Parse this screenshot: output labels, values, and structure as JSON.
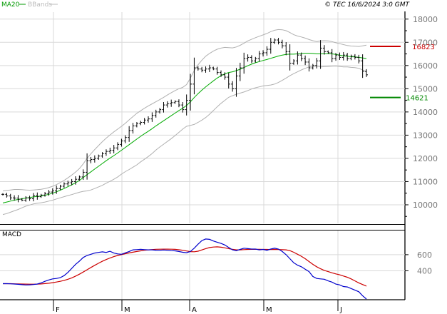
{
  "header": {
    "legend": [
      {
        "label": "MA20",
        "color": "#009900"
      },
      {
        "label": "BBands",
        "color": "#bbbbbb"
      }
    ],
    "source": "© TEC 16/6/2024 3:0 GMT"
  },
  "colors": {
    "price_bar": "#000000",
    "ma20": "#00aa00",
    "bbands": "#b0b0b0",
    "grid": "#d9d9d9",
    "resistance": "#cc0000",
    "support": "#008800",
    "macd": "#0000cc",
    "signal": "#cc0000",
    "axis_text": "#777777"
  },
  "chart_data": [
    {
      "type": "line",
      "subtype": "ohlc-bars",
      "title": "",
      "xlabel": "",
      "ylabel": "",
      "ylim": [
        9200,
        18300
      ],
      "y_ticks": [
        10000,
        11000,
        12000,
        13000,
        14000,
        15000,
        16000,
        17000,
        18000
      ],
      "y_tick_labels": [
        "10000",
        "11000",
        "12000",
        "13000",
        "14000",
        "15000",
        "16000",
        "17000",
        "18000"
      ],
      "x_month_labels": [
        "F",
        "M",
        "A",
        "M",
        "J"
      ],
      "grid": true,
      "legend_placement": "top-left",
      "closes": [
        10450,
        10380,
        10300,
        10290,
        10240,
        10200,
        10300,
        10260,
        10400,
        10350,
        10420,
        10480,
        10550,
        10600,
        10700,
        10800,
        10900,
        10950,
        11000,
        11100,
        11200,
        11400,
        11900,
        11950,
        12000,
        12100,
        12200,
        12300,
        12350,
        12450,
        12600,
        12750,
        12900,
        13200,
        13400,
        13500,
        13550,
        13650,
        13700,
        13850,
        14000,
        14100,
        14300,
        14350,
        14400,
        14450,
        14300,
        14100,
        14500,
        15200,
        15900,
        15850,
        15800,
        15850,
        15900,
        15850,
        15700,
        15600,
        15500,
        15200,
        15000,
        15550,
        15900,
        16300,
        16350,
        16200,
        16300,
        16500,
        16550,
        16700,
        17000,
        17100,
        17000,
        16850,
        16600,
        16100,
        16200,
        16450,
        16300,
        16150,
        15900,
        16000,
        16200,
        16750,
        16600,
        16550,
        16300,
        16450,
        16350,
        16450,
        16300,
        16400,
        16350,
        16200,
        15750,
        15600
      ],
      "series": [
        {
          "name": "MA20",
          "values": [
            10080,
            10120,
            10160,
            10200,
            10230,
            10260,
            10290,
            10310,
            10340,
            10360,
            10380,
            10410,
            10450,
            10500,
            10560,
            10630,
            10700,
            10780,
            10860,
            10950,
            11050,
            11170,
            11300,
            11420,
            11540,
            11660,
            11780,
            11900,
            12010,
            12120,
            12230,
            12350,
            12470,
            12590,
            12710,
            12830,
            12950,
            13060,
            13170,
            13280,
            13400,
            13510,
            13620,
            13730,
            13840,
            13950,
            14060,
            14160,
            14280,
            14440,
            14620,
            14790,
            14940,
            15080,
            15210,
            15340,
            15460,
            15560,
            15640,
            15700,
            15730,
            15780,
            15840,
            15910,
            15990,
            16060,
            16120,
            16170,
            16220,
            16260,
            16310,
            16360,
            16410,
            16450,
            16480,
            16490,
            16490,
            16500,
            16520,
            16530,
            16530,
            16520,
            16500,
            16500,
            16510,
            16510,
            16500,
            16480,
            16450,
            16420,
            16400,
            16380,
            16370,
            16350,
            16330,
            16300
          ]
        },
        {
          "name": "BBands upper",
          "values": [
            10600,
            10620,
            10640,
            10660,
            10660,
            10650,
            10640,
            10630,
            10640,
            10650,
            10670,
            10700,
            10740,
            10800,
            10870,
            10960,
            11050,
            11160,
            11280,
            11410,
            11560,
            11760,
            12000,
            12200,
            12380,
            12550,
            12720,
            12870,
            13010,
            13140,
            13260,
            13380,
            13510,
            13660,
            13800,
            13940,
            14050,
            14160,
            14260,
            14350,
            14440,
            14530,
            14630,
            14730,
            14830,
            14920,
            15000,
            15060,
            15180,
            15460,
            15780,
            16030,
            16230,
            16400,
            16520,
            16620,
            16700,
            16750,
            16780,
            16770,
            16760,
            16800,
            16870,
            16960,
            17060,
            17130,
            17200,
            17260,
            17320,
            17380,
            17460,
            17520,
            17550,
            17540,
            17500,
            17420,
            17330,
            17270,
            17230,
            17180,
            17120,
            17070,
            17030,
            17060,
            17070,
            17060,
            17030,
            16980,
            16940,
            16900,
            16860,
            16840,
            16830,
            16820,
            16850,
            16880
          ]
        },
        {
          "name": "BBands lower",
          "values": [
            9580,
            9620,
            9680,
            9740,
            9800,
            9870,
            9940,
            9990,
            10040,
            10070,
            10090,
            10120,
            10160,
            10200,
            10250,
            10300,
            10350,
            10400,
            10440,
            10490,
            10540,
            10580,
            10600,
            10640,
            10700,
            10770,
            10840,
            10930,
            11010,
            11100,
            11200,
            11320,
            11430,
            11520,
            11620,
            11720,
            11850,
            11960,
            12080,
            12210,
            12360,
            12490,
            12610,
            12730,
            12850,
            12980,
            13120,
            13260,
            13380,
            13420,
            13460,
            13550,
            13650,
            13760,
            13900,
            14060,
            14220,
            14370,
            14500,
            14630,
            14700,
            14760,
            14810,
            14860,
            14920,
            14990,
            15040,
            15080,
            15120,
            15140,
            15160,
            15200,
            15270,
            15360,
            15460,
            15560,
            15650,
            15730,
            15810,
            15880,
            15940,
            15970,
            15970,
            15940,
            15950,
            15960,
            15970,
            15980,
            15960,
            15940,
            15940,
            15920,
            15910,
            15880,
            15810,
            15720
          ]
        }
      ],
      "levels": [
        {
          "name": "resistance",
          "value": 16823,
          "label": "16823"
        },
        {
          "name": "support",
          "value": 14621,
          "label": "14621"
        }
      ],
      "level_label_color": {
        "resistance": "#cc0000",
        "support": "#008800"
      }
    },
    {
      "type": "line",
      "title": "MACD",
      "xlabel": "",
      "ylabel": "",
      "ylim": [
        50,
        900
      ],
      "y_ticks": [
        400,
        600
      ],
      "y_tick_labels": [
        "400",
        "600"
      ],
      "grid": true,
      "series": [
        {
          "name": "MACD",
          "values": [
            240,
            240,
            239,
            236,
            232,
            228,
            224,
            226,
            230,
            236,
            250,
            270,
            286,
            300,
            305,
            315,
            340,
            380,
            430,
            480,
            520,
            565,
            590,
            605,
            620,
            628,
            635,
            628,
            642,
            620,
            610,
            605,
            623,
            640,
            660,
            663,
            666,
            663,
            660,
            660,
            656,
            655,
            658,
            655,
            650,
            648,
            640,
            630,
            625,
            640,
            680,
            730,
            775,
            795,
            790,
            770,
            755,
            740,
            720,
            690,
            660,
            650,
            665,
            680,
            675,
            670,
            670,
            660,
            665,
            655,
            670,
            680,
            670,
            640,
            600,
            550,
            500,
            470,
            450,
            420,
            390,
            330,
            305,
            300,
            295,
            275,
            260,
            235,
            225,
            205,
            200,
            180,
            160,
            140,
            90,
            50
          ]
        },
        {
          "name": "Signal",
          "values": [
            240,
            240,
            240,
            239,
            238,
            236,
            235,
            234,
            234,
            235,
            237,
            241,
            246,
            253,
            261,
            270,
            281,
            295,
            312,
            334,
            358,
            385,
            413,
            441,
            468,
            494,
            518,
            540,
            559,
            576,
            590,
            601,
            612,
            622,
            631,
            640,
            648,
            655,
            660,
            664,
            667,
            668,
            669,
            669,
            668,
            666,
            661,
            655,
            646,
            638,
            636,
            643,
            659,
            675,
            688,
            695,
            697,
            693,
            685,
            675,
            666,
            660,
            660,
            663,
            665,
            666,
            666,
            666,
            665,
            665,
            664,
            665,
            664,
            662,
            660,
            650,
            630,
            605,
            580,
            550,
            515,
            480,
            450,
            425,
            405,
            390,
            375,
            362,
            350,
            335,
            320,
            300,
            275,
            250,
            230,
            210
          ]
        }
      ],
      "legend_placement": "top-left"
    }
  ]
}
